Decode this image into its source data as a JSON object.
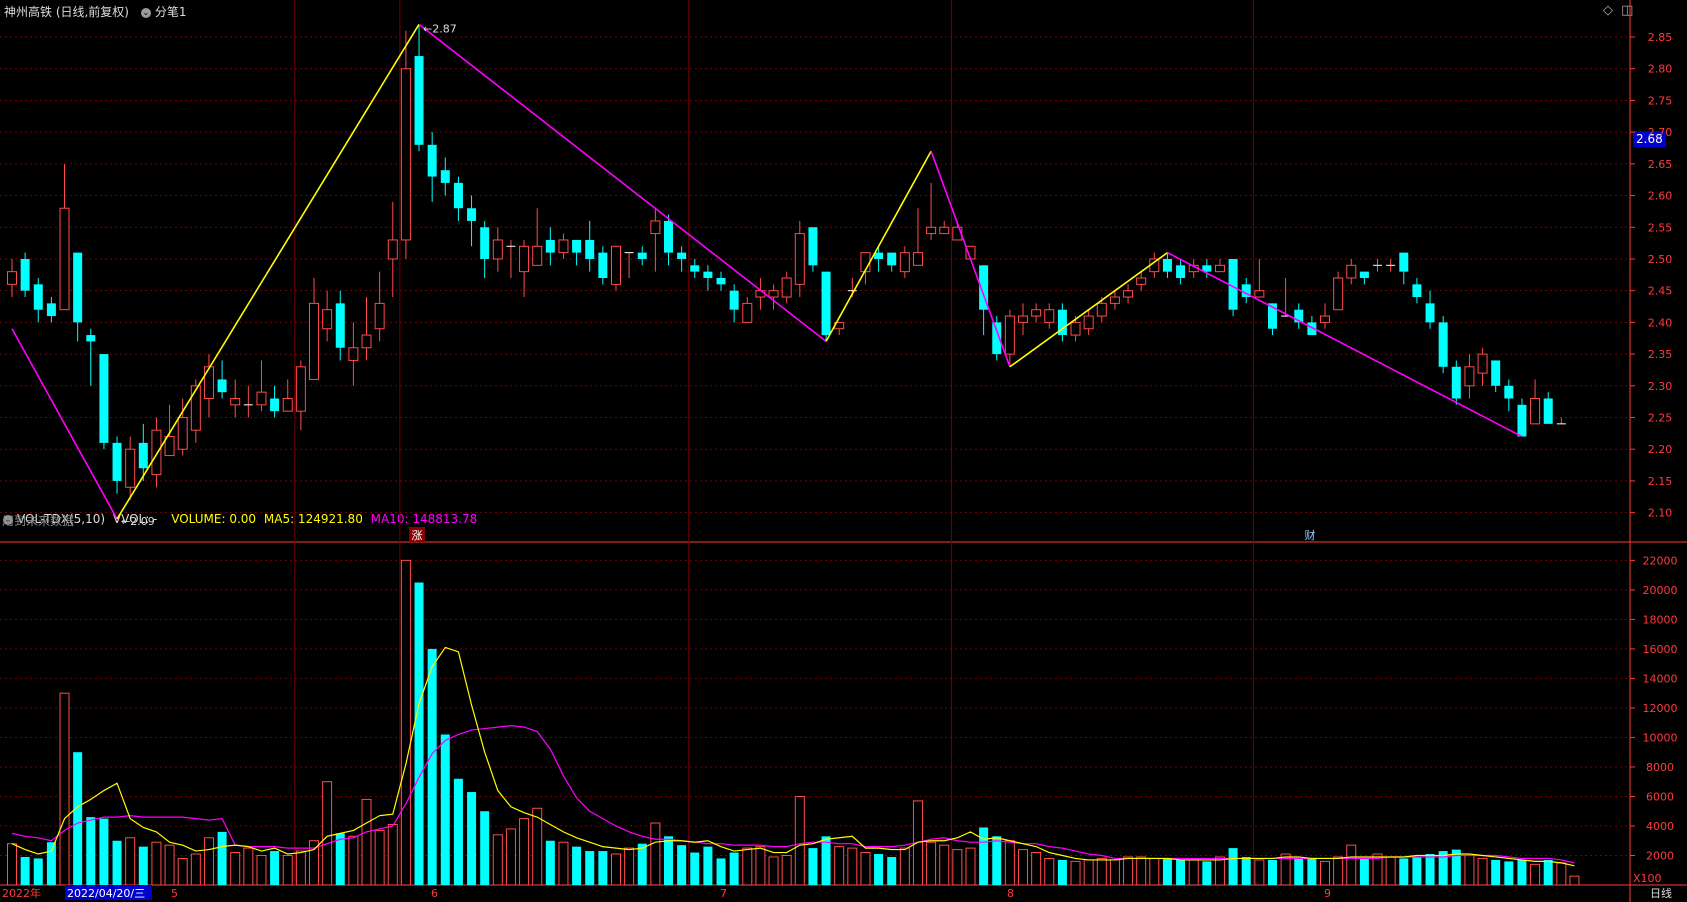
{
  "header": {
    "title": "神州高铁 (日线,前复权)",
    "fenbi_label": "分笔1",
    "window_icons": [
      "diamond-icon",
      "restore-icon"
    ]
  },
  "price_tag": "2.68",
  "note_future": "用到未来数据",
  "markers": {
    "rise": "涨",
    "finance": "财"
  },
  "vol_header": {
    "name": "VOL-TDX(5,10)",
    "vvol": "VVOL: -",
    "volume": "VOLUME: 0.00",
    "ma5": "MA5: 124921.80",
    "ma10": "MA10: 148813.78"
  },
  "footer": {
    "year": "2022年",
    "cursor_date": "2022/04/20/三",
    "months": [
      "5",
      "6",
      "7",
      "8",
      "9"
    ],
    "period": "日线",
    "unit": "X100"
  },
  "colors": {
    "up": "#ff4b4b",
    "down": "#00ffff",
    "ma5": "#ffff00",
    "ma10": "#ff00ff",
    "grid": "#7a0000",
    "axis": "#ff3b3b"
  },
  "chart_data": [
    {
      "type": "candlestick",
      "title": "神州高铁 (日线,前复权)",
      "y_ticks": [
        2.85,
        2.8,
        2.75,
        2.7,
        2.65,
        2.6,
        2.55,
        2.5,
        2.45,
        2.4,
        2.35,
        2.3,
        2.25,
        2.2,
        2.15,
        2.1
      ],
      "ylim": [
        2.06,
        2.88
      ],
      "candles": [
        [
          2.46,
          2.48,
          2.5,
          2.44
        ],
        [
          2.5,
          2.45,
          2.51,
          2.44
        ],
        [
          2.46,
          2.42,
          2.47,
          2.4
        ],
        [
          2.43,
          2.41,
          2.44,
          2.4
        ],
        [
          2.42,
          2.58,
          2.65,
          2.42
        ],
        [
          2.51,
          2.4,
          2.51,
          2.37
        ],
        [
          2.38,
          2.37,
          2.39,
          2.3
        ],
        [
          2.35,
          2.21,
          2.35,
          2.2
        ],
        [
          2.21,
          2.15,
          2.22,
          2.13
        ],
        [
          2.14,
          2.2,
          2.22,
          2.12
        ],
        [
          2.21,
          2.17,
          2.24,
          2.15
        ],
        [
          2.16,
          2.23,
          2.25,
          2.14
        ],
        [
          2.19,
          2.22,
          2.27,
          2.19
        ],
        [
          2.2,
          2.25,
          2.28,
          2.19
        ],
        [
          2.23,
          2.3,
          2.31,
          2.21
        ],
        [
          2.28,
          2.33,
          2.35,
          2.25
        ],
        [
          2.31,
          2.29,
          2.34,
          2.28
        ],
        [
          2.27,
          2.28,
          2.31,
          2.25
        ],
        [
          2.27,
          2.27,
          2.3,
          2.25
        ],
        [
          2.27,
          2.29,
          2.34,
          2.26
        ],
        [
          2.28,
          2.26,
          2.3,
          2.25
        ],
        [
          2.26,
          2.28,
          2.31,
          2.26
        ],
        [
          2.26,
          2.33,
          2.34,
          2.23
        ],
        [
          2.31,
          2.43,
          2.47,
          2.31
        ],
        [
          2.39,
          2.42,
          2.45,
          2.37
        ],
        [
          2.43,
          2.36,
          2.45,
          2.34
        ],
        [
          2.34,
          2.36,
          2.4,
          2.3
        ],
        [
          2.36,
          2.38,
          2.44,
          2.34
        ],
        [
          2.39,
          2.43,
          2.48,
          2.37
        ],
        [
          2.5,
          2.53,
          2.59,
          2.44
        ],
        [
          2.53,
          2.8,
          2.86,
          2.5
        ],
        [
          2.82,
          2.68,
          2.87,
          2.67
        ],
        [
          2.68,
          2.63,
          2.7,
          2.59
        ],
        [
          2.64,
          2.62,
          2.66,
          2.6
        ],
        [
          2.62,
          2.58,
          2.63,
          2.56
        ],
        [
          2.58,
          2.56,
          2.6,
          2.52
        ],
        [
          2.55,
          2.5,
          2.56,
          2.47
        ],
        [
          2.5,
          2.53,
          2.55,
          2.48
        ],
        [
          2.52,
          2.52,
          2.53,
          2.47
        ],
        [
          2.48,
          2.52,
          2.53,
          2.44
        ],
        [
          2.49,
          2.52,
          2.58,
          2.49
        ],
        [
          2.53,
          2.51,
          2.55,
          2.49
        ],
        [
          2.51,
          2.53,
          2.54,
          2.5
        ],
        [
          2.53,
          2.51,
          2.53,
          2.49
        ],
        [
          2.53,
          2.5,
          2.56,
          2.48
        ],
        [
          2.51,
          2.47,
          2.52,
          2.46
        ],
        [
          2.46,
          2.52,
          2.52,
          2.45
        ],
        [
          2.51,
          2.51,
          2.51,
          2.47
        ],
        [
          2.51,
          2.5,
          2.52,
          2.49
        ],
        [
          2.54,
          2.56,
          2.58,
          2.48
        ],
        [
          2.56,
          2.51,
          2.57,
          2.49
        ],
        [
          2.51,
          2.5,
          2.52,
          2.48
        ],
        [
          2.49,
          2.48,
          2.5,
          2.47
        ],
        [
          2.48,
          2.47,
          2.49,
          2.45
        ],
        [
          2.47,
          2.46,
          2.48,
          2.45
        ],
        [
          2.45,
          2.42,
          2.46,
          2.4
        ],
        [
          2.4,
          2.43,
          2.44,
          2.4
        ],
        [
          2.44,
          2.45,
          2.47,
          2.42
        ],
        [
          2.44,
          2.45,
          2.46,
          2.42
        ],
        [
          2.44,
          2.47,
          2.48,
          2.43
        ],
        [
          2.46,
          2.54,
          2.56,
          2.44
        ],
        [
          2.55,
          2.49,
          2.55,
          2.48
        ],
        [
          2.48,
          2.38,
          2.48,
          2.37
        ],
        [
          2.39,
          2.4,
          2.4,
          2.38
        ],
        [
          2.45,
          2.45,
          2.47,
          2.44
        ],
        [
          2.48,
          2.51,
          2.51,
          2.46
        ],
        [
          2.51,
          2.5,
          2.52,
          2.48
        ],
        [
          2.51,
          2.49,
          2.51,
          2.48
        ],
        [
          2.48,
          2.51,
          2.52,
          2.47
        ],
        [
          2.49,
          2.51,
          2.58,
          2.49
        ],
        [
          2.54,
          2.55,
          2.62,
          2.53
        ],
        [
          2.54,
          2.55,
          2.56,
          2.54
        ],
        [
          2.53,
          2.55,
          2.56,
          2.53
        ],
        [
          2.5,
          2.52,
          2.52,
          2.5
        ],
        [
          2.49,
          2.42,
          2.49,
          2.38
        ],
        [
          2.4,
          2.35,
          2.41,
          2.34
        ],
        [
          2.35,
          2.41,
          2.42,
          2.33
        ],
        [
          2.4,
          2.41,
          2.43,
          2.38
        ],
        [
          2.41,
          2.42,
          2.43,
          2.4
        ],
        [
          2.4,
          2.42,
          2.43,
          2.39
        ],
        [
          2.42,
          2.38,
          2.43,
          2.37
        ],
        [
          2.38,
          2.4,
          2.41,
          2.37
        ],
        [
          2.39,
          2.41,
          2.42,
          2.38
        ],
        [
          2.41,
          2.43,
          2.44,
          2.4
        ],
        [
          2.43,
          2.44,
          2.45,
          2.42
        ],
        [
          2.44,
          2.45,
          2.46,
          2.43
        ],
        [
          2.46,
          2.47,
          2.48,
          2.45
        ],
        [
          2.48,
          2.5,
          2.51,
          2.47
        ],
        [
          2.5,
          2.48,
          2.51,
          2.47
        ],
        [
          2.49,
          2.47,
          2.5,
          2.46
        ],
        [
          2.48,
          2.49,
          2.5,
          2.47
        ],
        [
          2.49,
          2.48,
          2.5,
          2.47
        ],
        [
          2.48,
          2.49,
          2.5,
          2.48
        ],
        [
          2.5,
          2.42,
          2.5,
          2.41
        ],
        [
          2.46,
          2.44,
          2.47,
          2.43
        ],
        [
          2.44,
          2.45,
          2.5,
          2.44
        ],
        [
          2.43,
          2.39,
          2.43,
          2.38
        ],
        [
          2.41,
          2.41,
          2.47,
          2.41
        ],
        [
          2.42,
          2.4,
          2.43,
          2.39
        ],
        [
          2.4,
          2.38,
          2.41,
          2.38
        ],
        [
          2.4,
          2.41,
          2.43,
          2.39
        ],
        [
          2.42,
          2.47,
          2.48,
          2.42
        ],
        [
          2.47,
          2.49,
          2.5,
          2.46
        ],
        [
          2.48,
          2.47,
          2.48,
          2.46
        ],
        [
          2.49,
          2.49,
          2.5,
          2.48
        ],
        [
          2.49,
          2.49,
          2.5,
          2.48
        ],
        [
          2.51,
          2.48,
          2.51,
          2.46
        ],
        [
          2.46,
          2.44,
          2.47,
          2.43
        ],
        [
          2.43,
          2.4,
          2.45,
          2.39
        ],
        [
          2.4,
          2.33,
          2.41,
          2.32
        ],
        [
          2.33,
          2.28,
          2.34,
          2.27
        ],
        [
          2.3,
          2.33,
          2.35,
          2.28
        ],
        [
          2.32,
          2.35,
          2.36,
          2.3
        ],
        [
          2.34,
          2.3,
          2.34,
          2.29
        ],
        [
          2.3,
          2.28,
          2.31,
          2.26
        ],
        [
          2.27,
          2.22,
          2.28,
          2.22
        ],
        [
          2.24,
          2.28,
          2.31,
          2.24
        ],
        [
          2.28,
          2.24,
          2.29,
          2.24
        ],
        [
          2.24,
          2.24,
          2.25,
          2.24
        ]
      ],
      "zigzag": [
        {
          "color": "#ff00ff",
          "points": [
            [
              0,
              2.39
            ],
            [
              8,
              2.09
            ]
          ]
        },
        {
          "color": "#ffff00",
          "points": [
            [
              8,
              2.09
            ],
            [
              31,
              2.87
            ]
          ]
        },
        {
          "color": "#ff00ff",
          "points": [
            [
              31,
              2.87
            ],
            [
              62,
              2.37
            ]
          ]
        },
        {
          "color": "#ffff00",
          "points": [
            [
              62,
              2.37
            ],
            [
              70,
              2.67
            ]
          ]
        },
        {
          "color": "#ff00ff",
          "points": [
            [
              70,
              2.67
            ],
            [
              76,
              2.33
            ]
          ]
        },
        {
          "color": "#ffff00",
          "points": [
            [
              76,
              2.33
            ],
            [
              88,
              2.51
            ]
          ]
        },
        {
          "color": "#ff00ff",
          "points": [
            [
              88,
              2.51
            ],
            [
              115,
              2.22
            ]
          ]
        }
      ],
      "annotations": [
        {
          "x": 8,
          "y": 2.09,
          "text": "2.09"
        },
        {
          "x": 31,
          "y": 2.87,
          "text": "2.87"
        }
      ]
    },
    {
      "type": "bar",
      "title": "VOL-TDX(5,10)",
      "y_ticks": [
        22000,
        20000,
        18000,
        16000,
        14000,
        12000,
        10000,
        8000,
        6000,
        4000,
        2000
      ],
      "ylim": [
        0,
        22500
      ],
      "volumes": [
        2800,
        1900,
        1800,
        2900,
        13000,
        9000,
        4600,
        4500,
        3000,
        3200,
        2600,
        2900,
        2700,
        1800,
        2100,
        3200,
        3600,
        2200,
        2500,
        2000,
        2300,
        2000,
        2300,
        3000,
        7000,
        3500,
        3300,
        5800,
        3700,
        4100,
        22000,
        20500,
        16000,
        10200,
        7200,
        6300,
        5000,
        3400,
        3800,
        4500,
        5200,
        3000,
        2900,
        2600,
        2300,
        2300,
        2100,
        2500,
        2800,
        4200,
        3300,
        2700,
        2200,
        2600,
        1800,
        2200,
        2500,
        2600,
        1900,
        2000,
        6000,
        2500,
        3300,
        2600,
        2500,
        2200,
        2100,
        1900,
        2500,
        5700,
        2900,
        2700,
        2400,
        2500,
        3900,
        3300,
        3000,
        2400,
        2200,
        1800,
        1700,
        1600,
        1700,
        1800,
        1700,
        1900,
        1900,
        1800,
        1800,
        1700,
        1700,
        1600,
        1900,
        2500,
        1900,
        1700,
        1700,
        2100,
        1800,
        1800,
        1600,
        1900,
        2700,
        1800,
        2100,
        1900,
        1800,
        1900,
        2100,
        2300,
        2400,
        2000,
        1800,
        1700,
        1600,
        1700,
        1400,
        1700,
        1500,
        600
      ],
      "ma5": [
        2800,
        2400,
        2100,
        2300,
        4500,
        5300,
        5800,
        6400,
        6900,
        4500,
        3900,
        3600,
        2900,
        2700,
        2300,
        2400,
        2600,
        2700,
        2600,
        2300,
        2500,
        2100,
        2200,
        2400,
        3300,
        3500,
        3700,
        4200,
        4700,
        4800,
        8200,
        12300,
        14800,
        16100,
        15800,
        12200,
        9000,
        6400,
        5300,
        4900,
        4600,
        4100,
        3600,
        3200,
        2900,
        2600,
        2500,
        2400,
        2500,
        2900,
        3000,
        3000,
        2900,
        3000,
        2600,
        2300,
        2400,
        2500,
        2200,
        2200,
        2700,
        2800,
        3100,
        3200,
        3300,
        2500,
        2500,
        2400,
        2400,
        2900,
        3000,
        3000,
        3200,
        3600,
        3100,
        3200,
        3000,
        2800,
        2600,
        2200,
        2000,
        1800,
        1700,
        1700,
        1700,
        1800,
        1800,
        1800,
        1800,
        1700,
        1700,
        1700,
        1700,
        1800,
        1800,
        1800,
        1800,
        1900,
        1900,
        1800,
        1800,
        1800,
        1900,
        1900,
        1900,
        1900,
        1900,
        2000,
        2000,
        2000,
        2100,
        2100,
        2000,
        1900,
        1800,
        1700,
        1600,
        1600,
        1500,
        1300
      ],
      "ma10": [
        3500,
        3300,
        3200,
        3000,
        3700,
        4200,
        4400,
        4600,
        4600,
        4700,
        4600,
        4600,
        4600,
        4600,
        4500,
        4400,
        4500,
        2700,
        2600,
        2600,
        2600,
        2500,
        2500,
        2500,
        2800,
        3100,
        3200,
        3600,
        3800,
        4000,
        5500,
        7300,
        8900,
        9800,
        10200,
        10500,
        10600,
        10700,
        10800,
        10700,
        10400,
        9200,
        7400,
        5900,
        5000,
        4500,
        4000,
        3600,
        3300,
        3100,
        3100,
        3000,
        2900,
        2800,
        2800,
        2700,
        2700,
        2700,
        2600,
        2600,
        2800,
        2900,
        2900,
        2800,
        2800,
        2600,
        2600,
        2600,
        2700,
        2900,
        3100,
        3200,
        3000,
        2900,
        2900,
        3000,
        2900,
        2800,
        2800,
        2600,
        2500,
        2300,
        2100,
        2000,
        1800,
        1800,
        1800,
        1800,
        1800,
        1800,
        1800,
        1800,
        1800,
        1800,
        1800,
        1800,
        1800,
        1800,
        1800,
        1800,
        1800,
        1800,
        1800,
        1800,
        1800,
        1900,
        1900,
        1900,
        1900,
        1900,
        2000,
        2000,
        2000,
        2000,
        1900,
        1800,
        1800,
        1800,
        1700,
        1500
      ]
    }
  ]
}
